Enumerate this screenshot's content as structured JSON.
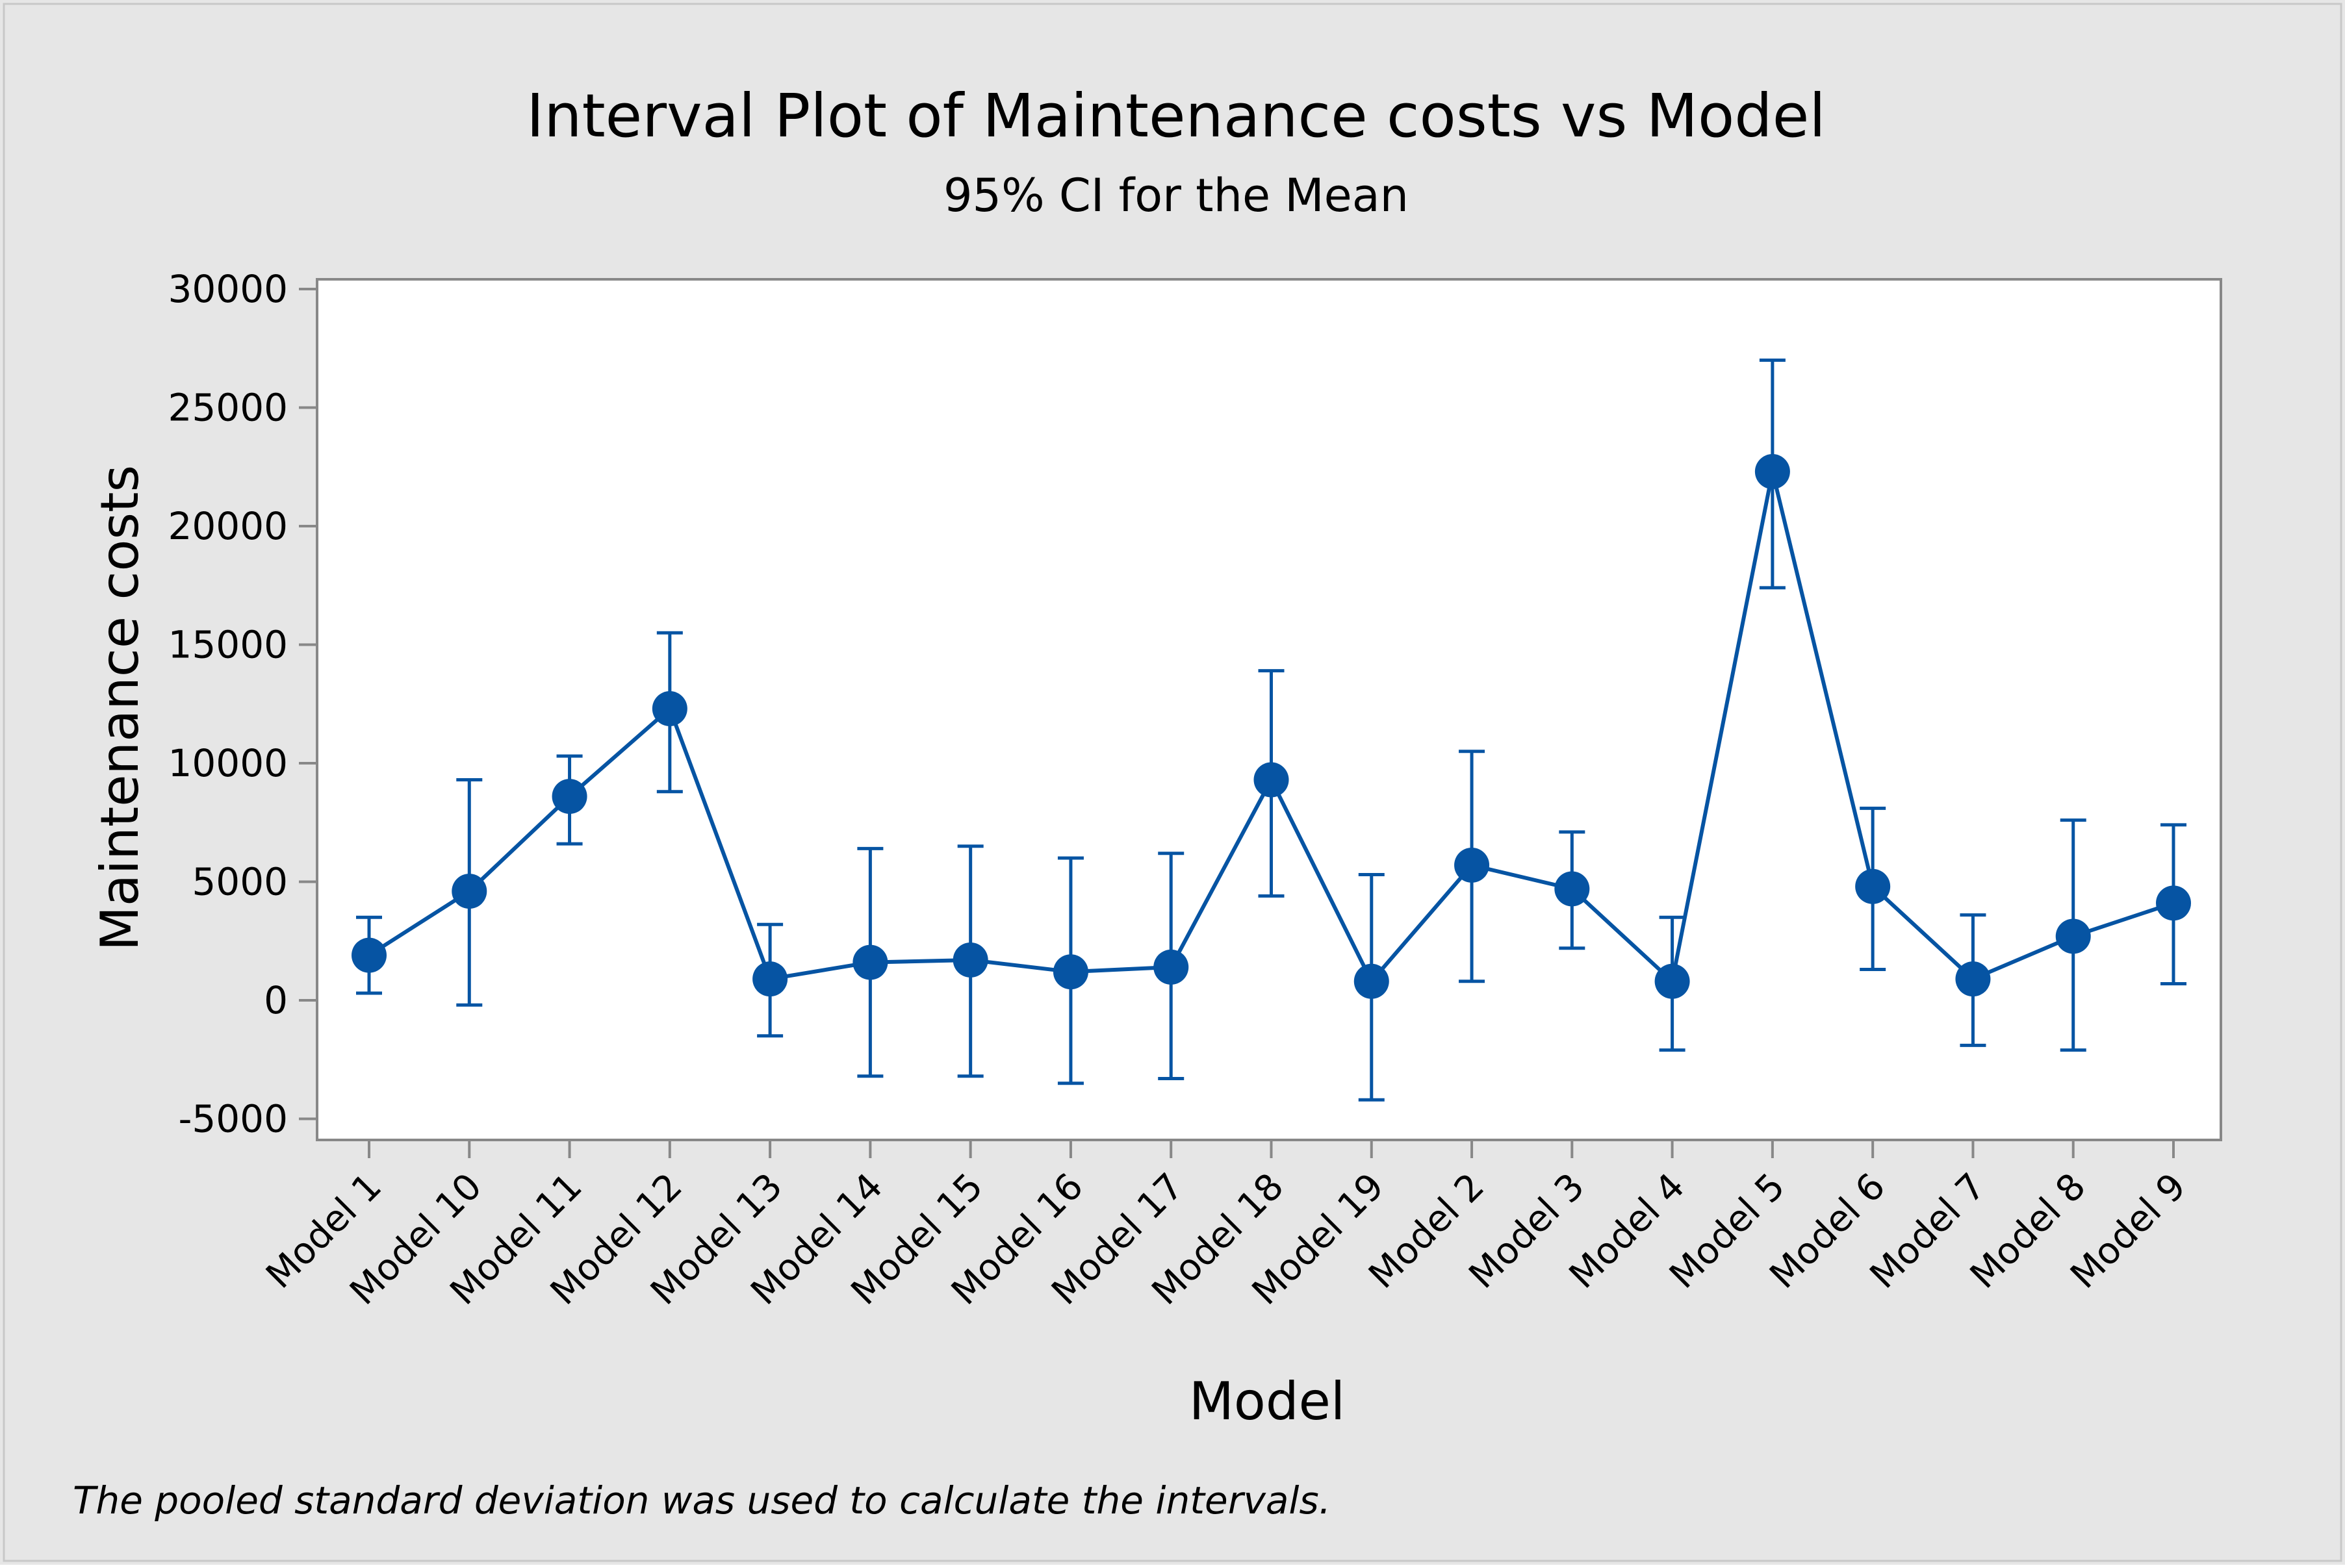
{
  "chart_data": {
    "type": "interval",
    "title": "Interval Plot of Maintenance costs vs Model",
    "subtitle": "95% CI for the Mean",
    "xlabel": "Model",
    "ylabel": "Maintenance costs",
    "footnote": "The pooled standard deviation was used to calculate the intervals.",
    "ylim": [
      -6000,
      31000
    ],
    "yticks": [
      -5000,
      0,
      5000,
      10000,
      15000,
      20000,
      25000,
      30000
    ],
    "ytick_labels": [
      "-5000",
      "0",
      "5000",
      "10000",
      "15000",
      "20000",
      "25000",
      "30000"
    ],
    "categories": [
      "Model 1",
      "Model 10",
      "Model 11",
      "Model 12",
      "Model 13",
      "Model 14",
      "Model 15",
      "Model 16",
      "Model 17",
      "Model 18",
      "Model 19",
      "Model 2",
      "Model 3",
      "Model 4",
      "Model 5",
      "Model 6",
      "Model 7",
      "Model 8",
      "Model 9"
    ],
    "means": [
      1900,
      4600,
      8600,
      12300,
      900,
      1600,
      1700,
      1200,
      1400,
      9300,
      800,
      5700,
      4700,
      800,
      22300,
      4800,
      900,
      2700,
      4100
    ],
    "lower": [
      300,
      -200,
      6600,
      8800,
      -1500,
      -3200,
      -3200,
      -3500,
      -3300,
      4400,
      -4200,
      800,
      2200,
      -2100,
      17400,
      1300,
      -1900,
      -2100,
      700
    ],
    "upper": [
      3500,
      9300,
      10300,
      15500,
      3200,
      6400,
      6500,
      6000,
      6200,
      13900,
      5300,
      10500,
      7100,
      3500,
      27000,
      8100,
      3600,
      7600,
      7400
    ],
    "colors": {
      "outer_background": "#e6e6e6",
      "plot_background": "#ffffff",
      "series": "#0654a3",
      "axis": "#888888",
      "text": "#000000"
    }
  }
}
